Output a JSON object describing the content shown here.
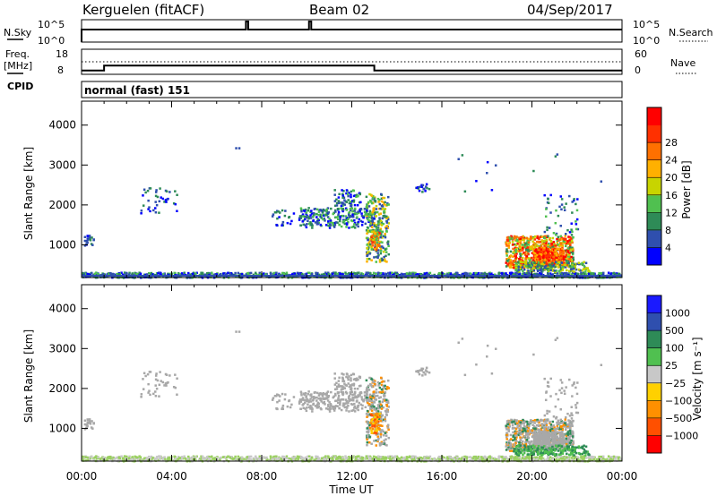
{
  "header": {
    "station": "Kerguelen (fitACF)",
    "beam": "Beam 02",
    "date": "04/Sep/2017"
  },
  "top_panels": {
    "nsky_label": "N.Sky",
    "nsky_ticks": [
      "10^5",
      "10^0"
    ],
    "nsearch_label": "N.Search",
    "nsearch_ticks": [
      "10^5",
      "10^0"
    ],
    "freq_label": "Freq.",
    "freq_unit": "[MHz]",
    "freq_ticks": [
      "18",
      "8"
    ],
    "nave_label": "Nave",
    "nave_ticks": [
      "60",
      "0"
    ],
    "cpid_label": "CPID",
    "cpid_value": "normal (fast) 151"
  },
  "colors": {
    "power_scale": [
      "#0000ff",
      "#2f4fae",
      "#2e8b57",
      "#50c050",
      "#c8d400",
      "#ffb000",
      "#ff7000",
      "#ff3000",
      "#ff0000"
    ],
    "velocity_scale": [
      "#1a1aff",
      "#2f4fae",
      "#2e8b57",
      "#50c050",
      "#c8c8c8",
      "#ffd000",
      "#ff9000",
      "#ff5000",
      "#ff0000"
    ],
    "ground_scatter": "#a8a8a8"
  },
  "chart_data": [
    {
      "type": "line",
      "title": "N.Sky / N.Search",
      "x": [
        "00:00",
        "04:00",
        "08:00",
        "12:00",
        "16:00",
        "20:00",
        "00:00"
      ],
      "series": [
        {
          "name": "N.Sky",
          "values": [
            1000.0,
            1000.0,
            100000.0,
            1000.0,
            1000.0,
            1000.0,
            1000.0
          ]
        }
      ],
      "ylim_labels": [
        "10^0",
        "10^5"
      ],
      "scale": "log"
    },
    {
      "type": "line",
      "title": "Freq. / Nave",
      "x": [
        "00:00",
        "01:00",
        "13:00",
        "13:00",
        "24:00"
      ],
      "series": [
        {
          "name": "Freq.",
          "values": [
            9.5,
            11.5,
            11.5,
            9.5,
            9.5
          ]
        },
        {
          "name": "Nave",
          "values": [
            40,
            40,
            40,
            40,
            40
          ]
        }
      ],
      "ylim": [
        8,
        18
      ]
    },
    {
      "type": "heatmap",
      "title": "Power",
      "xlabel": "Time UT",
      "ylabel": "Slant Range [km]",
      "x_ticks": [
        "00:00",
        "04:00",
        "08:00",
        "12:00",
        "16:00",
        "20:00",
        "00:00"
      ],
      "y_ticks": [
        1000,
        2000,
        3000,
        4000
      ],
      "ylim": [
        180,
        4600
      ],
      "colorbar": {
        "label": "Power [dB]",
        "ticks": [
          "4",
          "8",
          "12",
          "16",
          "20",
          "24",
          "28"
        ]
      }
    },
    {
      "type": "heatmap",
      "title": "Velocity",
      "xlabel": "Time UT",
      "ylabel": "Slant Range [km]",
      "x_ticks": [
        "00:00",
        "04:00",
        "08:00",
        "12:00",
        "16:00",
        "20:00",
        "00:00"
      ],
      "y_ticks": [
        1000,
        2000,
        3000,
        4000
      ],
      "ylim": [
        180,
        4600
      ],
      "colorbar": {
        "label": "Velocity [m s⁻¹]",
        "ticks": [
          "1000",
          "500",
          "100",
          "25",
          "−25",
          "−100",
          "−500",
          "−1000"
        ]
      }
    }
  ]
}
